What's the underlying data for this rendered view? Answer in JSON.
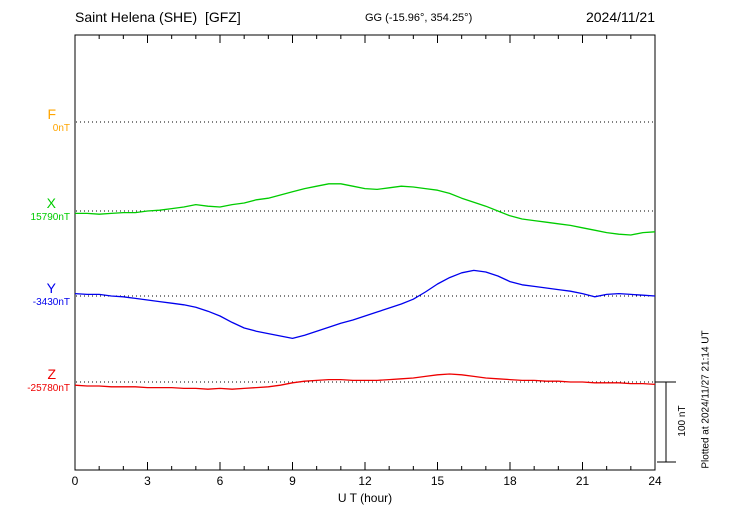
{
  "header": {
    "title": "Saint Helena (SHE)  [GFZ]",
    "coords": "GG (-15.96°, 354.25°)",
    "date": "2024/11/21"
  },
  "axis": {
    "xlabel": "U T (hour)",
    "ticks": [
      0,
      3,
      6,
      9,
      12,
      15,
      18,
      21,
      24
    ]
  },
  "scale_bar": {
    "label": "100 nT",
    "span_nT": 100
  },
  "footer_note": "Plotted at 2024/11/27 21:14 UT",
  "chart_data": {
    "type": "line",
    "title": "Saint Helena (SHE) [GFZ] magnetogram 2024/11/21",
    "xlabel": "U T (hour)",
    "x_range": [
      0,
      24
    ],
    "x_start": 0,
    "x_step": 0.5,
    "grid": "dotted horizontal baselines per component",
    "note": "values are nT offsets from each component baseline",
    "series": [
      {
        "name": "F",
        "color": "#FFA500",
        "baseline_label": "0nT",
        "baseline_value": 0,
        "values": []
      },
      {
        "name": "X",
        "color": "#00CC00",
        "baseline_label": "15790nT",
        "baseline_value": 15790,
        "values": [
          -3,
          -3,
          -4,
          -3,
          -2,
          -2,
          0,
          1,
          3,
          5,
          8,
          6,
          5,
          8,
          10,
          14,
          16,
          20,
          24,
          28,
          31,
          34,
          34,
          31,
          28,
          27,
          29,
          31,
          30,
          28,
          26,
          22,
          16,
          11,
          6,
          0,
          -6,
          -10,
          -12,
          -14,
          -16,
          -18,
          -21,
          -24,
          -27,
          -29,
          -30,
          -27,
          -26
        ]
      },
      {
        "name": "Y",
        "color": "#0000EE",
        "baseline_label": "-3430nT",
        "baseline_value": -3430,
        "values": [
          3,
          2,
          2,
          0,
          -1,
          -3,
          -5,
          -7,
          -9,
          -11,
          -14,
          -19,
          -25,
          -33,
          -40,
          -44,
          -47,
          -50,
          -53,
          -49,
          -44,
          -39,
          -34,
          -30,
          -25,
          -20,
          -15,
          -10,
          -4,
          5,
          15,
          23,
          29,
          32,
          30,
          25,
          18,
          14,
          12,
          10,
          8,
          6,
          3,
          -1,
          2,
          3,
          2,
          1,
          0
        ]
      },
      {
        "name": "Z",
        "color": "#EE0000",
        "baseline_label": "-25780nT",
        "baseline_value": -25780,
        "values": [
          -4,
          -5,
          -5,
          -6,
          -6,
          -6,
          -7,
          -7,
          -7,
          -8,
          -8,
          -9,
          -8,
          -9,
          -8,
          -7,
          -6,
          -4,
          -1,
          1,
          2,
          3,
          3,
          2,
          2,
          2,
          3,
          4,
          5,
          7,
          9,
          10,
          9,
          7,
          5,
          4,
          3,
          2,
          2,
          1,
          1,
          0,
          0,
          -1,
          -1,
          -1,
          -2,
          -2,
          -3
        ]
      }
    ]
  }
}
